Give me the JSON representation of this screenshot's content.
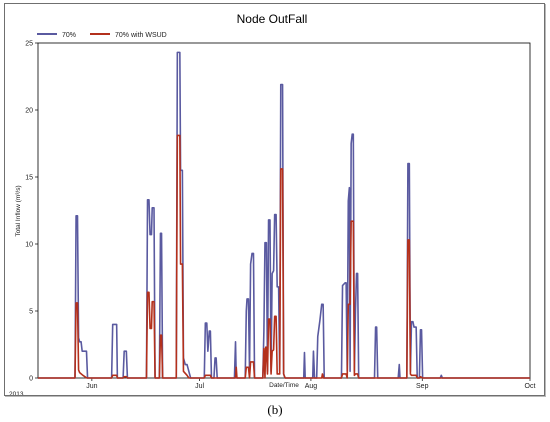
{
  "figure": {
    "caption": "(b)"
  },
  "chart_data": {
    "type": "line",
    "title": "Node OutFall",
    "xlabel": "Date/Time",
    "ylabel": "Total Inflow (m³/s)",
    "ylim": [
      0,
      25
    ],
    "xlim": [
      0,
      137
    ],
    "x_unit": "days from 2013-05-17",
    "year_label": "2013",
    "y_ticks": [
      "0",
      "5",
      "10",
      "15",
      "20",
      "25"
    ],
    "x_ticks": [
      {
        "label": "Jun",
        "pos": 15
      },
      {
        "label": "Jul",
        "pos": 45
      },
      {
        "label": "Aug",
        "pos": 76
      },
      {
        "label": "Sep",
        "pos": 107
      },
      {
        "label": "Oct",
        "pos": 137
      }
    ],
    "grid": false,
    "legend_position": "top-left",
    "series": [
      {
        "name": "70%",
        "color": "#5a5aa0",
        "points": [
          [
            0,
            0
          ],
          [
            10.3,
            0
          ],
          [
            10.6,
            12.1
          ],
          [
            11.0,
            12.1
          ],
          [
            11.3,
            3.0
          ],
          [
            11.6,
            2.7
          ],
          [
            12.0,
            2.7
          ],
          [
            12.3,
            2.0
          ],
          [
            13.5,
            2.0
          ],
          [
            13.8,
            0
          ],
          [
            20.5,
            0
          ],
          [
            20.8,
            4.0
          ],
          [
            21.9,
            4.0
          ],
          [
            22.1,
            0
          ],
          [
            23.7,
            0
          ],
          [
            24.0,
            2.0
          ],
          [
            24.6,
            2.0
          ],
          [
            24.9,
            0
          ],
          [
            30.2,
            0
          ],
          [
            30.5,
            13.3
          ],
          [
            30.9,
            13.3
          ],
          [
            31.2,
            10.7
          ],
          [
            31.6,
            10.7
          ],
          [
            31.8,
            12.7
          ],
          [
            32.3,
            12.7
          ],
          [
            32.6,
            0
          ],
          [
            33.8,
            0
          ],
          [
            34.1,
            10.8
          ],
          [
            34.4,
            10.8
          ],
          [
            34.7,
            0
          ],
          [
            38.5,
            0
          ],
          [
            38.8,
            24.3
          ],
          [
            39.5,
            24.3
          ],
          [
            39.7,
            15.5
          ],
          [
            40.2,
            15.5
          ],
          [
            40.5,
            1.5
          ],
          [
            41.0,
            1.0
          ],
          [
            41.5,
            1.0
          ],
          [
            42.0,
            0.5
          ],
          [
            42.5,
            0
          ],
          [
            46.3,
            0
          ],
          [
            46.6,
            4.1
          ],
          [
            47.0,
            4.1
          ],
          [
            47.3,
            2.0
          ],
          [
            47.7,
            3.5
          ],
          [
            48.0,
            3.5
          ],
          [
            48.3,
            0
          ],
          [
            49.0,
            0
          ],
          [
            49.3,
            1.5
          ],
          [
            49.6,
            1.5
          ],
          [
            49.9,
            0
          ],
          [
            54.7,
            0
          ],
          [
            55.0,
            2.7
          ],
          [
            55.2,
            0
          ],
          [
            57.7,
            0
          ],
          [
            58.0,
            5.0
          ],
          [
            58.2,
            5.9
          ],
          [
            58.6,
            5.9
          ],
          [
            58.9,
            0.5
          ],
          [
            59.2,
            8.5
          ],
          [
            59.6,
            9.3
          ],
          [
            60.0,
            9.3
          ],
          [
            60.3,
            0
          ],
          [
            62.6,
            0
          ],
          [
            62.9,
            3.5
          ],
          [
            63.2,
            10.1
          ],
          [
            63.6,
            10.1
          ],
          [
            63.9,
            0.5
          ],
          [
            64.2,
            11.8
          ],
          [
            64.6,
            11.8
          ],
          [
            64.9,
            0.5
          ],
          [
            65.2,
            7.8
          ],
          [
            65.6,
            8.0
          ],
          [
            65.9,
            12.2
          ],
          [
            66.3,
            12.2
          ],
          [
            66.6,
            6.8
          ],
          [
            67.0,
            6.8
          ],
          [
            67.3,
            0.5
          ],
          [
            67.6,
            21.9
          ],
          [
            68.1,
            21.9
          ],
          [
            68.4,
            0.3
          ],
          [
            68.8,
            0
          ],
          [
            74.0,
            0
          ],
          [
            74.2,
            1.9
          ],
          [
            74.4,
            0
          ],
          [
            76.5,
            0
          ],
          [
            76.7,
            2.0
          ],
          [
            77.0,
            0
          ],
          [
            77.6,
            0
          ],
          [
            77.9,
            3.1
          ],
          [
            78.5,
            4.3
          ],
          [
            79.0,
            5.5
          ],
          [
            79.4,
            5.5
          ],
          [
            79.7,
            0
          ],
          [
            84.5,
            0
          ],
          [
            84.8,
            6.9
          ],
          [
            85.5,
            7.1
          ],
          [
            85.8,
            7.1
          ],
          [
            86.1,
            0.5
          ],
          [
            86.4,
            13.2
          ],
          [
            86.7,
            14.2
          ],
          [
            86.9,
            0.5
          ],
          [
            87.2,
            17.5
          ],
          [
            87.5,
            18.2
          ],
          [
            87.8,
            18.2
          ],
          [
            88.1,
            0.5
          ],
          [
            88.4,
            5.0
          ],
          [
            88.7,
            7.8
          ],
          [
            89.0,
            7.8
          ],
          [
            89.3,
            0
          ],
          [
            93.7,
            0
          ],
          [
            94.0,
            3.8
          ],
          [
            94.3,
            3.8
          ],
          [
            94.6,
            0
          ],
          [
            100.3,
            0
          ],
          [
            100.6,
            1.0
          ],
          [
            100.8,
            0
          ],
          [
            102.7,
            0
          ],
          [
            103.0,
            16.0
          ],
          [
            103.4,
            16.0
          ],
          [
            103.7,
            0.5
          ],
          [
            104.0,
            4.2
          ],
          [
            104.4,
            4.2
          ],
          [
            104.7,
            3.8
          ],
          [
            105.3,
            3.8
          ],
          [
            105.6,
            0
          ],
          [
            106.2,
            0
          ],
          [
            106.5,
            3.6
          ],
          [
            106.8,
            3.6
          ],
          [
            107.1,
            0
          ],
          [
            112.0,
            0
          ],
          [
            112.3,
            0.2
          ],
          [
            112.6,
            0
          ],
          [
            137.0,
            0
          ]
        ]
      },
      {
        "name": "70% with WSUD",
        "color": "#b3301c",
        "points": [
          [
            0,
            0
          ],
          [
            10.3,
            0
          ],
          [
            10.6,
            5.6
          ],
          [
            11.0,
            5.6
          ],
          [
            11.3,
            0.6
          ],
          [
            11.6,
            0.4
          ],
          [
            12.5,
            0.2
          ],
          [
            13.6,
            0
          ],
          [
            20.5,
            0
          ],
          [
            20.8,
            0.2
          ],
          [
            21.9,
            0.2
          ],
          [
            22.1,
            0
          ],
          [
            23.7,
            0
          ],
          [
            24.0,
            0.1
          ],
          [
            24.6,
            0.1
          ],
          [
            24.9,
            0
          ],
          [
            30.2,
            0
          ],
          [
            30.5,
            6.4
          ],
          [
            30.9,
            6.4
          ],
          [
            31.2,
            3.7
          ],
          [
            31.6,
            3.7
          ],
          [
            31.8,
            5.7
          ],
          [
            32.3,
            5.7
          ],
          [
            32.6,
            0
          ],
          [
            33.8,
            0
          ],
          [
            34.1,
            3.2
          ],
          [
            34.4,
            3.2
          ],
          [
            34.7,
            0
          ],
          [
            38.5,
            0
          ],
          [
            38.8,
            18.1
          ],
          [
            39.5,
            18.1
          ],
          [
            39.7,
            8.5
          ],
          [
            40.2,
            8.5
          ],
          [
            40.5,
            0.5
          ],
          [
            41.5,
            0.2
          ],
          [
            42.0,
            0
          ],
          [
            46.3,
            0
          ],
          [
            46.6,
            0.2
          ],
          [
            48.0,
            0.2
          ],
          [
            48.3,
            0
          ],
          [
            55.0,
            0
          ],
          [
            55.2,
            0.8
          ],
          [
            55.4,
            0
          ],
          [
            57.7,
            0
          ],
          [
            58.0,
            0.8
          ],
          [
            58.6,
            0.8
          ],
          [
            58.9,
            0
          ],
          [
            59.2,
            1.2
          ],
          [
            60.0,
            1.2
          ],
          [
            60.3,
            0
          ],
          [
            62.6,
            0
          ],
          [
            62.9,
            2.2
          ],
          [
            63.2,
            0
          ],
          [
            63.4,
            2.3
          ],
          [
            63.6,
            2.3
          ],
          [
            63.9,
            0.3
          ],
          [
            64.2,
            4.4
          ],
          [
            64.6,
            4.4
          ],
          [
            64.9,
            0.3
          ],
          [
            65.2,
            2.0
          ],
          [
            65.6,
            2.1
          ],
          [
            65.9,
            4.6
          ],
          [
            66.3,
            4.6
          ],
          [
            66.6,
            0.3
          ],
          [
            67.3,
            0.3
          ],
          [
            67.6,
            15.6
          ],
          [
            68.1,
            15.6
          ],
          [
            68.4,
            0.3
          ],
          [
            68.8,
            0
          ],
          [
            79.0,
            0
          ],
          [
            79.2,
            0.3
          ],
          [
            79.5,
            0
          ],
          [
            84.5,
            0
          ],
          [
            84.8,
            0.3
          ],
          [
            85.8,
            0.3
          ],
          [
            86.1,
            0
          ],
          [
            86.4,
            5.5
          ],
          [
            86.9,
            5.5
          ],
          [
            87.2,
            11.7
          ],
          [
            87.8,
            11.7
          ],
          [
            88.1,
            0.2
          ],
          [
            88.4,
            0.3
          ],
          [
            89.0,
            0.3
          ],
          [
            89.3,
            0
          ],
          [
            102.7,
            0
          ],
          [
            103.0,
            10.3
          ],
          [
            103.4,
            10.3
          ],
          [
            103.7,
            0.3
          ],
          [
            104.0,
            0.2
          ],
          [
            105.3,
            0.2
          ],
          [
            105.6,
            0
          ],
          [
            106.2,
            0
          ],
          [
            106.5,
            0.1
          ],
          [
            107.1,
            0
          ],
          [
            137.0,
            0
          ]
        ]
      }
    ]
  }
}
